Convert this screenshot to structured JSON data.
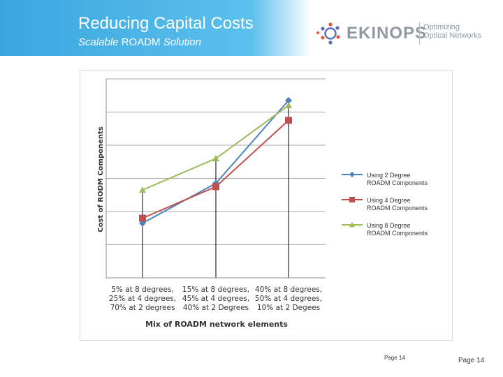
{
  "slide": {
    "title": "Reducing Capital Costs",
    "subtitle_prefix": "Scalable ",
    "subtitle_strong": "ROADM",
    "subtitle_suffix": " Solution",
    "page_inner": "Page 14",
    "page_outer": "Page 14"
  },
  "logo": {
    "word": "EKINOPS",
    "tagline_line1": "Optimizing",
    "tagline_line2": "Optical Networks",
    "colors": {
      "accent": "#e8573e",
      "primary": "#5a6fb4",
      "text": "#8f98a3"
    }
  },
  "chart_data": {
    "type": "line",
    "xlabel": "Mix of ROADM network elements",
    "ylabel": "Cost of RODM Components",
    "categories": [
      [
        "5% at 8 degrees,",
        "25% at 4 degrees,",
        "70% at 2 degrees"
      ],
      [
        "15% at 8 degrees,",
        "45% at 4 degrees,",
        "40% at 2 Degrees"
      ],
      [
        "40% at 8 degrees,",
        "50% at 4 degrees,",
        "10% at 2 Degees"
      ]
    ],
    "ylim": [
      0,
      6
    ],
    "grid": true,
    "legend_position": "right",
    "series": [
      {
        "name": [
          "Using 2 Degree",
          "ROADM Components"
        ],
        "values": [
          1.65,
          2.85,
          5.35
        ],
        "color": "#4f81bd",
        "marker": "diamond"
      },
      {
        "name": [
          "Using 4 Degree",
          "ROADM Components"
        ],
        "values": [
          1.8,
          2.75,
          4.75
        ],
        "color": "#c0504d",
        "marker": "square"
      },
      {
        "name": [
          "Using 8 Degree",
          "ROADM Components"
        ],
        "values": [
          2.65,
          3.6,
          5.2
        ],
        "color": "#9bbb59",
        "marker": "triangle"
      }
    ]
  }
}
